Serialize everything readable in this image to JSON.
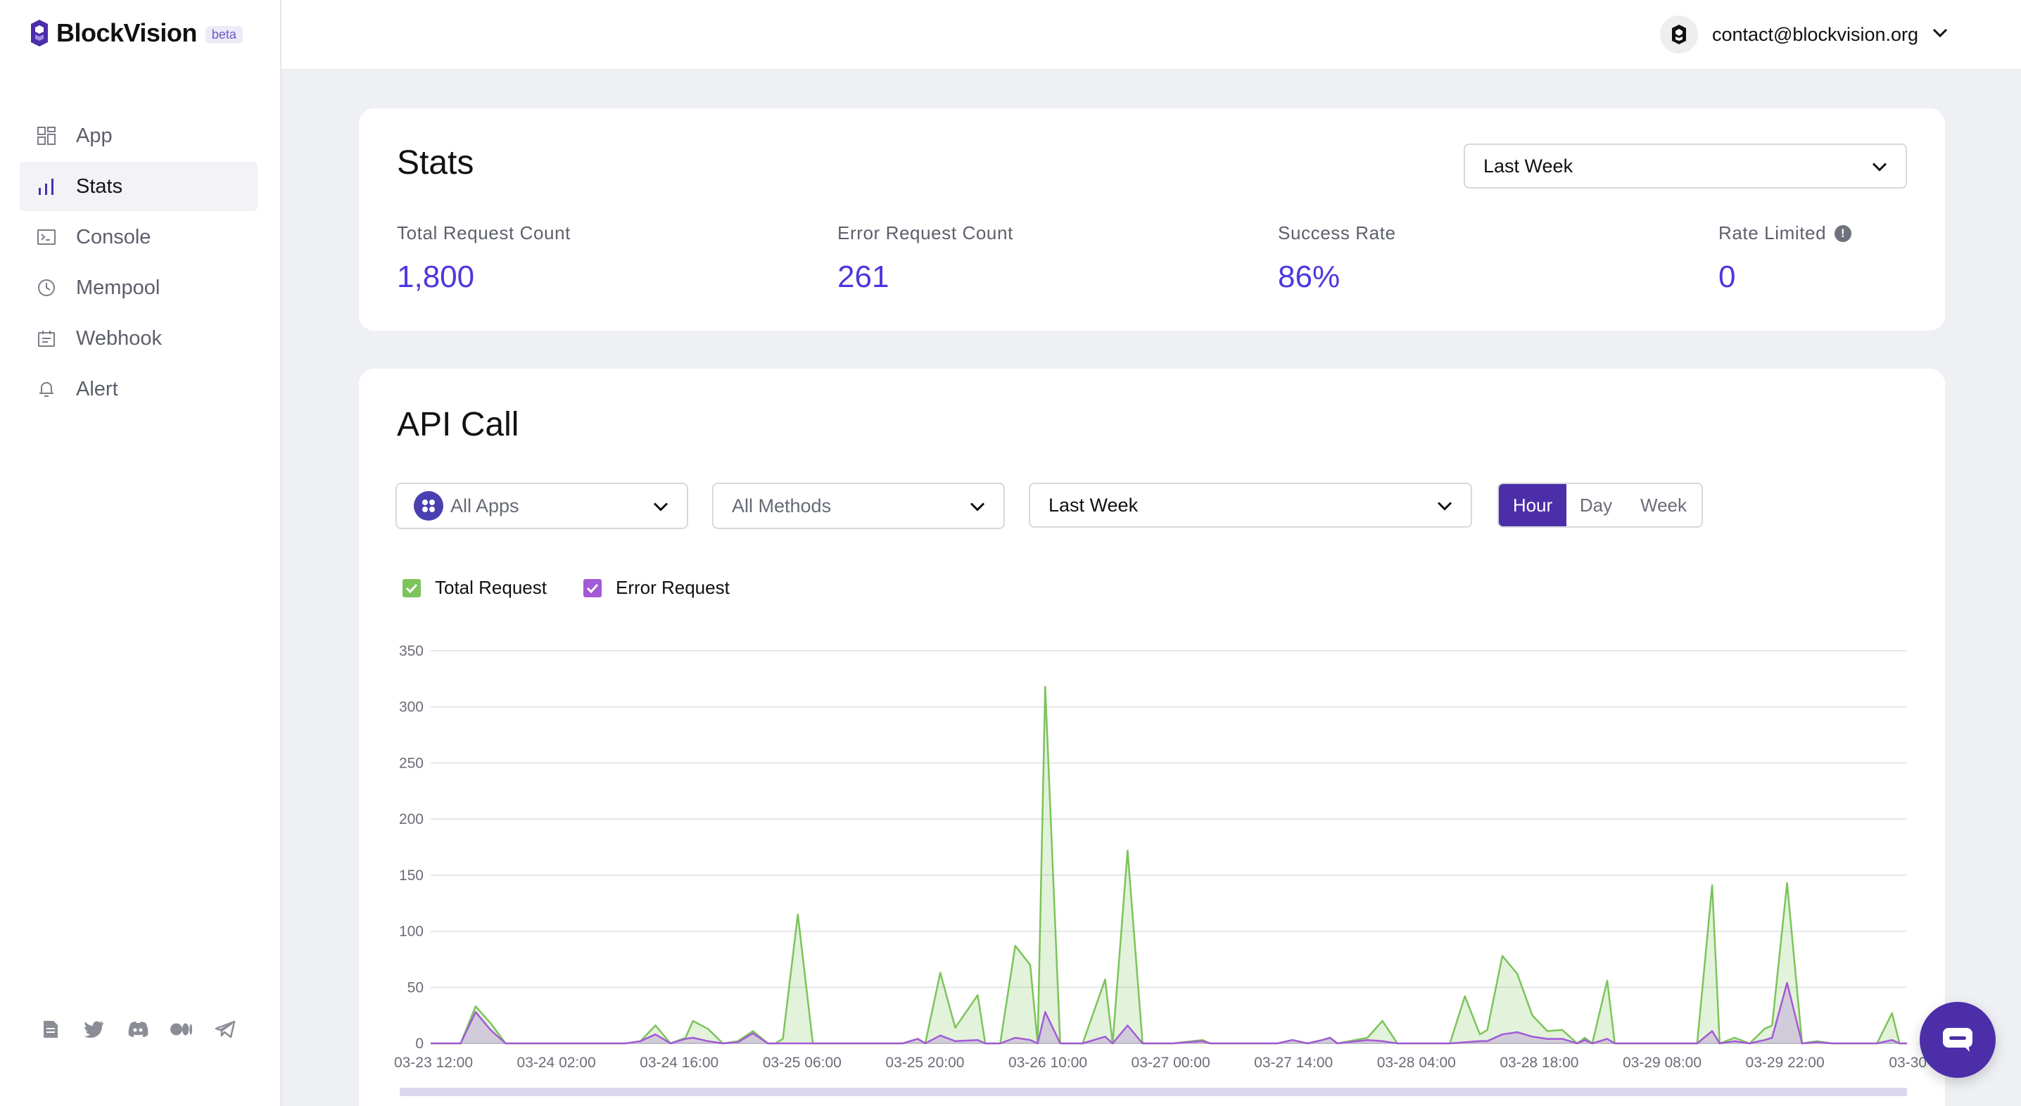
{
  "brand": {
    "name": "BlockVision",
    "badge": "beta"
  },
  "nav": [
    {
      "label": "App",
      "icon": "app-grid-icon",
      "active": false
    },
    {
      "label": "Stats",
      "icon": "bar-chart-icon",
      "active": true
    },
    {
      "label": "Console",
      "icon": "terminal-icon",
      "active": false
    },
    {
      "label": "Mempool",
      "icon": "clock-icon",
      "active": false
    },
    {
      "label": "Webhook",
      "icon": "webhook-icon",
      "active": false
    },
    {
      "label": "Alert",
      "icon": "bell-icon",
      "active": false
    }
  ],
  "social": [
    "docs-icon",
    "twitter-icon",
    "discord-icon",
    "medium-icon",
    "telegram-icon"
  ],
  "account": {
    "email": "contact@blockvision.org"
  },
  "stats": {
    "title": "Stats",
    "period": "Last Week",
    "items": [
      {
        "label": "Total Request Count",
        "value": "1,800"
      },
      {
        "label": "Error Request Count",
        "value": "261"
      },
      {
        "label": "Success Rate",
        "value": "86%"
      },
      {
        "label": "Rate Limited",
        "value": "0"
      }
    ]
  },
  "api": {
    "title": "API Call",
    "apps_select": "All Apps",
    "methods_select": "All Methods",
    "period_select": "Last Week",
    "granularity": {
      "options": [
        "Hour",
        "Day",
        "Week"
      ],
      "selected": "Hour"
    },
    "legend": {
      "total": "Total Request",
      "error": "Error Request"
    }
  },
  "colors": {
    "accent": "#4d37e0",
    "total": "#7cc45a",
    "error": "#a35ad6",
    "brand": "#4b2ea8"
  },
  "chart_data": {
    "type": "area",
    "y_ticks": [
      0,
      50,
      100,
      150,
      200,
      250,
      300,
      350
    ],
    "ylim": [
      0,
      350
    ],
    "x_tick_labels": [
      "03-23 12:00",
      "03-24 02:00",
      "03-24 16:00",
      "03-25 06:00",
      "03-25 20:00",
      "03-26 10:00",
      "03-27 00:00",
      "03-27 14:00",
      "03-28 04:00",
      "03-28 18:00",
      "03-29 08:00",
      "03-29 22:00",
      "03-30"
    ],
    "series": [
      {
        "name": "Total Request",
        "points": [
          [
            0,
            0
          ],
          [
            4,
            0
          ],
          [
            6,
            33
          ],
          [
            8,
            18
          ],
          [
            10,
            0
          ],
          [
            26,
            0
          ],
          [
            28,
            2
          ],
          [
            30,
            16
          ],
          [
            32,
            0
          ],
          [
            34,
            5
          ],
          [
            35,
            20
          ],
          [
            37,
            13
          ],
          [
            39,
            0
          ],
          [
            41,
            2
          ],
          [
            43,
            11
          ],
          [
            45,
            0
          ],
          [
            46,
            0
          ],
          [
            47,
            4
          ],
          [
            49,
            115
          ],
          [
            51,
            0
          ],
          [
            58,
            0
          ],
          [
            63,
            0
          ],
          [
            65,
            4
          ],
          [
            66,
            0
          ],
          [
            68,
            63
          ],
          [
            70,
            14
          ],
          [
            73,
            43
          ],
          [
            74,
            0
          ],
          [
            76,
            0
          ],
          [
            78,
            87
          ],
          [
            80,
            70
          ],
          [
            81,
            0
          ],
          [
            82,
            318
          ],
          [
            84,
            0
          ],
          [
            87,
            0
          ],
          [
            90,
            57
          ],
          [
            91,
            0
          ],
          [
            93,
            172
          ],
          [
            95,
            0
          ],
          [
            99,
            0
          ],
          [
            103,
            3
          ],
          [
            104,
            0
          ],
          [
            113,
            0
          ],
          [
            115,
            3
          ],
          [
            117,
            0
          ],
          [
            119,
            3
          ],
          [
            120,
            5
          ],
          [
            121,
            0
          ],
          [
            125,
            5
          ],
          [
            127,
            20
          ],
          [
            129,
            0
          ],
          [
            136,
            0
          ],
          [
            138,
            42
          ],
          [
            140,
            8
          ],
          [
            141,
            12
          ],
          [
            143,
            78
          ],
          [
            145,
            62
          ],
          [
            147,
            25
          ],
          [
            149,
            11
          ],
          [
            151,
            12
          ],
          [
            153,
            0
          ],
          [
            154,
            5
          ],
          [
            155,
            0
          ],
          [
            157,
            56
          ],
          [
            158,
            0
          ],
          [
            169,
            0
          ],
          [
            171,
            141
          ],
          [
            172,
            0
          ],
          [
            174,
            5
          ],
          [
            176,
            0
          ],
          [
            178,
            13
          ],
          [
            179,
            16
          ],
          [
            181,
            143
          ],
          [
            183,
            0
          ],
          [
            185,
            2
          ],
          [
            187,
            0
          ],
          [
            193,
            0
          ],
          [
            195,
            27
          ],
          [
            196,
            0
          ],
          [
            197,
            0
          ]
        ]
      },
      {
        "name": "Error Request",
        "points": [
          [
            0,
            0
          ],
          [
            4,
            0
          ],
          [
            6,
            28
          ],
          [
            8,
            12
          ],
          [
            10,
            0
          ],
          [
            26,
            0
          ],
          [
            28,
            2
          ],
          [
            30,
            8
          ],
          [
            32,
            0
          ],
          [
            34,
            4
          ],
          [
            35,
            5
          ],
          [
            37,
            2
          ],
          [
            39,
            0
          ],
          [
            41,
            1
          ],
          [
            43,
            9
          ],
          [
            45,
            0
          ],
          [
            58,
            0
          ],
          [
            63,
            0
          ],
          [
            65,
            4
          ],
          [
            66,
            0
          ],
          [
            68,
            7
          ],
          [
            70,
            2
          ],
          [
            73,
            3
          ],
          [
            74,
            0
          ],
          [
            76,
            0
          ],
          [
            78,
            5
          ],
          [
            80,
            3
          ],
          [
            81,
            0
          ],
          [
            82,
            28
          ],
          [
            84,
            0
          ],
          [
            87,
            0
          ],
          [
            90,
            6
          ],
          [
            91,
            0
          ],
          [
            93,
            16
          ],
          [
            95,
            0
          ],
          [
            99,
            0
          ],
          [
            103,
            2
          ],
          [
            104,
            0
          ],
          [
            113,
            0
          ],
          [
            115,
            3
          ],
          [
            117,
            0
          ],
          [
            119,
            3
          ],
          [
            120,
            5
          ],
          [
            121,
            0
          ],
          [
            125,
            3
          ],
          [
            127,
            2
          ],
          [
            129,
            0
          ],
          [
            136,
            0
          ],
          [
            138,
            1
          ],
          [
            140,
            2
          ],
          [
            141,
            2
          ],
          [
            143,
            8
          ],
          [
            145,
            10
          ],
          [
            147,
            6
          ],
          [
            149,
            4
          ],
          [
            151,
            4
          ],
          [
            153,
            0
          ],
          [
            154,
            3
          ],
          [
            155,
            0
          ],
          [
            157,
            4
          ],
          [
            158,
            0
          ],
          [
            169,
            0
          ],
          [
            171,
            11
          ],
          [
            172,
            0
          ],
          [
            174,
            2
          ],
          [
            176,
            0
          ],
          [
            178,
            3
          ],
          [
            179,
            5
          ],
          [
            181,
            54
          ],
          [
            183,
            0
          ],
          [
            185,
            1
          ],
          [
            187,
            0
          ],
          [
            193,
            0
          ],
          [
            195,
            3
          ],
          [
            196,
            0
          ],
          [
            197,
            0
          ]
        ]
      }
    ]
  }
}
